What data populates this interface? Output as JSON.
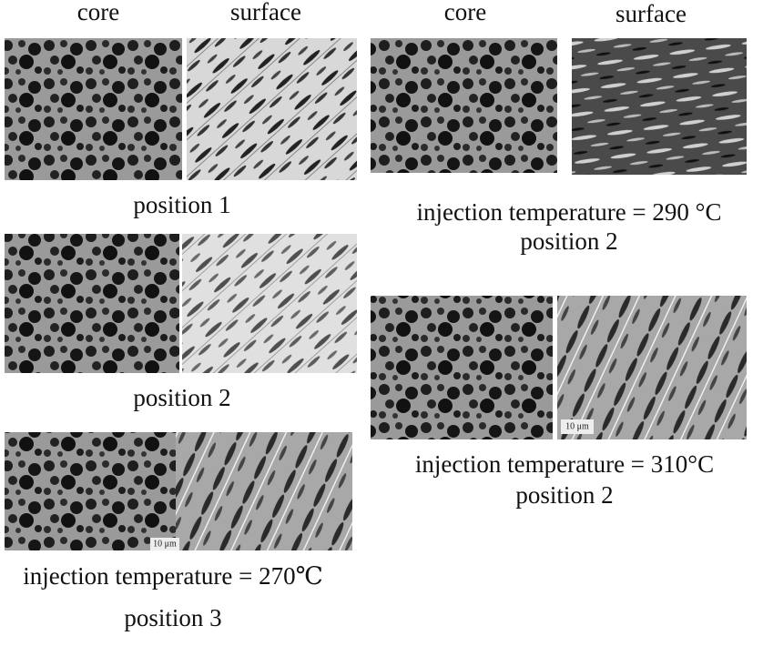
{
  "headers": {
    "left": [
      "core",
      "surface"
    ],
    "right": [
      "core",
      "surface"
    ]
  },
  "panels": [
    {
      "caption": [
        "position 1"
      ]
    },
    {
      "caption": [
        "position 2"
      ]
    },
    {
      "caption": [
        "injection temperature = 270℃",
        "position 3"
      ],
      "scale_bar": "10 μm"
    },
    {
      "caption": [
        "injection temperature = 290 °C",
        "position 2"
      ]
    },
    {
      "caption": [
        "injection temperature = 310°C",
        "position 2"
      ],
      "scale_bar": "10 μm"
    }
  ]
}
